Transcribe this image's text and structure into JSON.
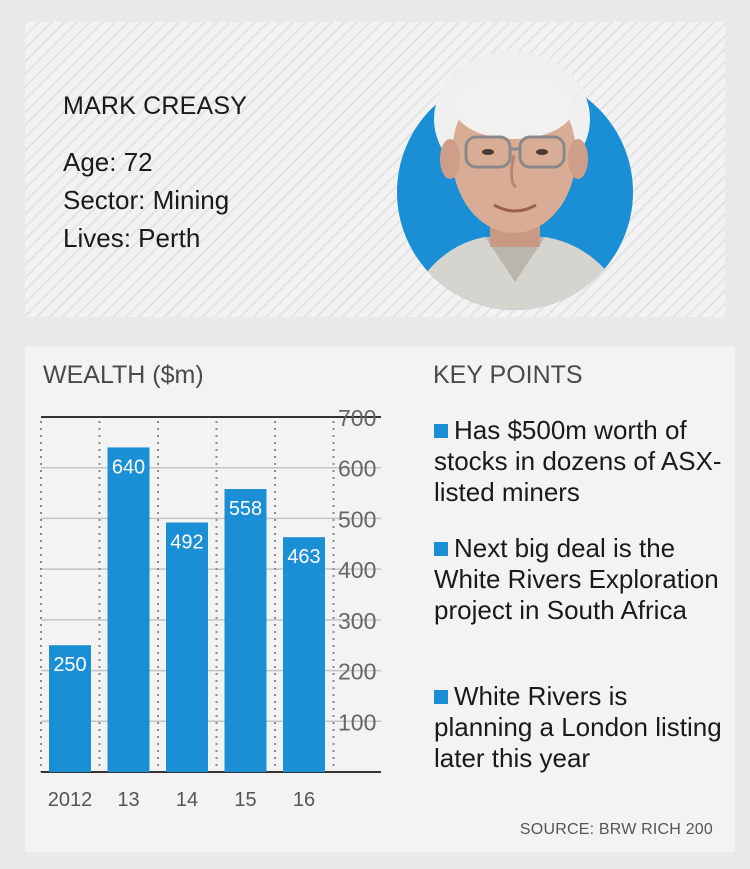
{
  "profile": {
    "name": "MARK CREASY",
    "age": "Age: 72",
    "sector": "Sector: Mining",
    "lives": "Lives: Perth",
    "accent_color": "#1b8fd6"
  },
  "chart_heading": "WEALTH ($m)",
  "key_points_heading": "KEY POINTS",
  "key_points": [
    "Has $500m worth of stocks in dozens of ASX-listed miners",
    "Next big deal is the White Rivers Exploration project in South Africa",
    "White Rivers is planning a London listing later this year"
  ],
  "source": "SOURCE: BRW RICH 200",
  "chart_data": {
    "type": "bar",
    "title": "WEALTH ($m)",
    "categories": [
      "2012",
      "13",
      "14",
      "15",
      "16"
    ],
    "values": [
      250,
      640,
      492,
      558,
      463
    ],
    "data_labels": [
      "250",
      "640",
      "492",
      "558",
      "463"
    ],
    "y_ticks": [
      100,
      200,
      300,
      400,
      500,
      600,
      700
    ],
    "ylim": [
      0,
      700
    ],
    "y_axis_position": "right",
    "grid": true,
    "bar_color": "#1b8fd6"
  }
}
